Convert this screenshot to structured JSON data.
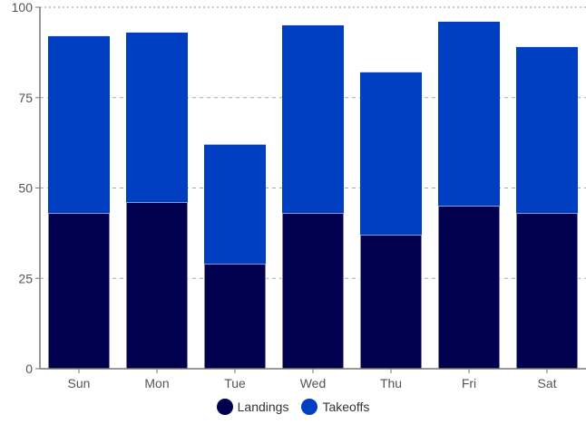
{
  "chart_data": {
    "type": "bar",
    "stacked": true,
    "categories": [
      "Sun",
      "Mon",
      "Tue",
      "Wed",
      "Thu",
      "Fri",
      "Sat"
    ],
    "series": [
      {
        "name": "Landings",
        "color": "#00004f",
        "values": [
          43,
          46,
          29,
          43,
          37,
          45,
          43
        ]
      },
      {
        "name": "Takeoffs",
        "color": "#003ec2",
        "values": [
          49,
          47,
          33,
          52,
          45,
          51,
          46
        ]
      }
    ],
    "ylim": [
      0,
      100
    ],
    "yticks": [
      0,
      25,
      50,
      75,
      100
    ],
    "grid": true,
    "legend_position": "bottom"
  }
}
